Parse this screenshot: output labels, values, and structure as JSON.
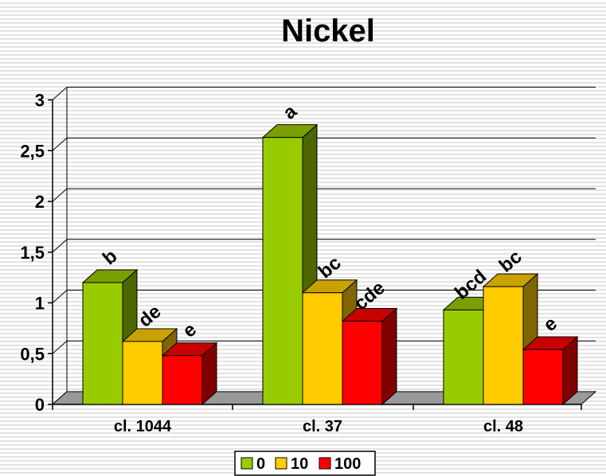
{
  "chart_data": {
    "type": "bar",
    "title": "Nickel",
    "categories": [
      "cl. 1044",
      "cl. 37",
      "cl. 48"
    ],
    "series": [
      {
        "name": "0",
        "values": [
          1.2,
          2.63,
          0.93
        ],
        "labels": [
          "b",
          "a",
          "bcd"
        ],
        "color": "#99cc00",
        "side_color": "#4d6600",
        "top_color": "#7a9f00"
      },
      {
        "name": "10",
        "values": [
          0.62,
          1.1,
          1.16
        ],
        "labels": [
          "de",
          "bc",
          "bc"
        ],
        "color": "#ffcc00",
        "side_color": "#806600",
        "top_color": "#c9a100"
      },
      {
        "name": "100",
        "values": [
          0.48,
          0.82,
          0.54
        ],
        "labels": [
          "e",
          "cde",
          "e"
        ],
        "color": "#ff0000",
        "side_color": "#800000",
        "top_color": "#c80000"
      }
    ],
    "ylim": [
      0,
      3
    ],
    "yticks": [
      "0",
      "0,5",
      "1",
      "1,5",
      "2",
      "2,5",
      "3"
    ],
    "ytick_values": [
      0,
      0.5,
      1,
      1.5,
      2,
      2.5,
      3
    ],
    "grid": true,
    "legend_position": "bottom",
    "floor_color": "#999999"
  }
}
